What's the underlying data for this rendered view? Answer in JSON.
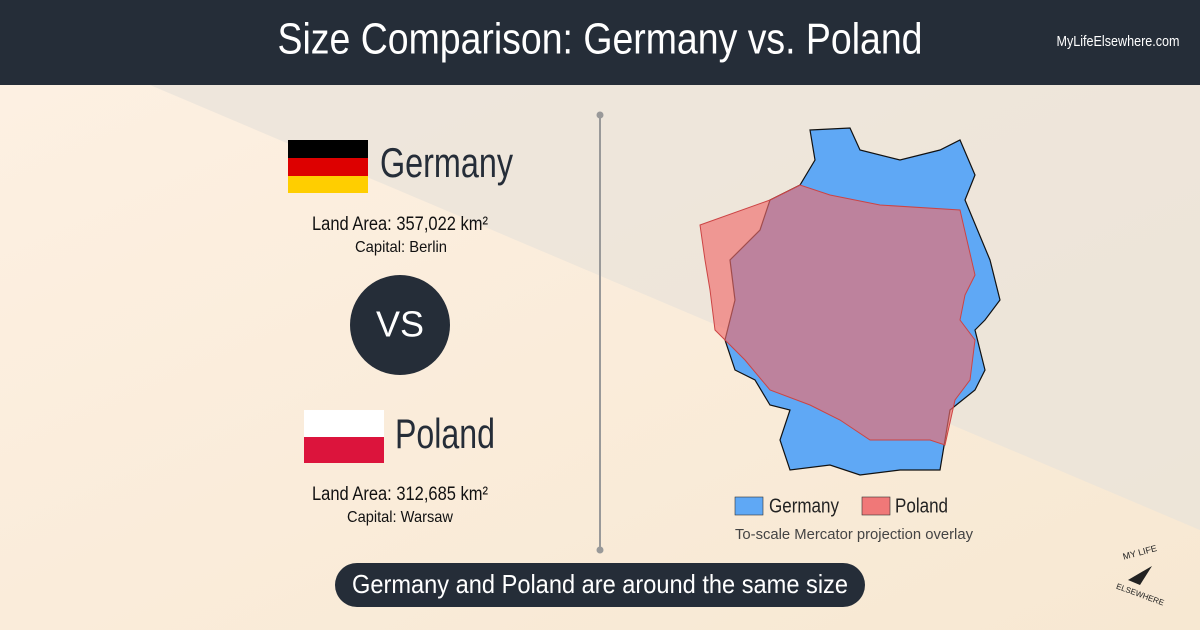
{
  "header": {
    "title": "Size Comparison: Germany vs. Poland",
    "site": "MyLifeElsewhere.com"
  },
  "countries": [
    {
      "name": "Germany",
      "land_area": "Land Area: 357,022 km²",
      "capital": "Capital: Berlin"
    },
    {
      "name": "Poland",
      "land_area": "Land Area: 312,685 km²",
      "capital": "Capital: Warsaw"
    }
  ],
  "versus": "VS",
  "legend": [
    "Germany",
    "Poland"
  ],
  "map_caption": "To-scale Mercator projection overlay",
  "summary": "Germany and Poland are around the same size",
  "logo": {
    "top": "MY LIFE",
    "bottom": "ELSEWHERE"
  }
}
